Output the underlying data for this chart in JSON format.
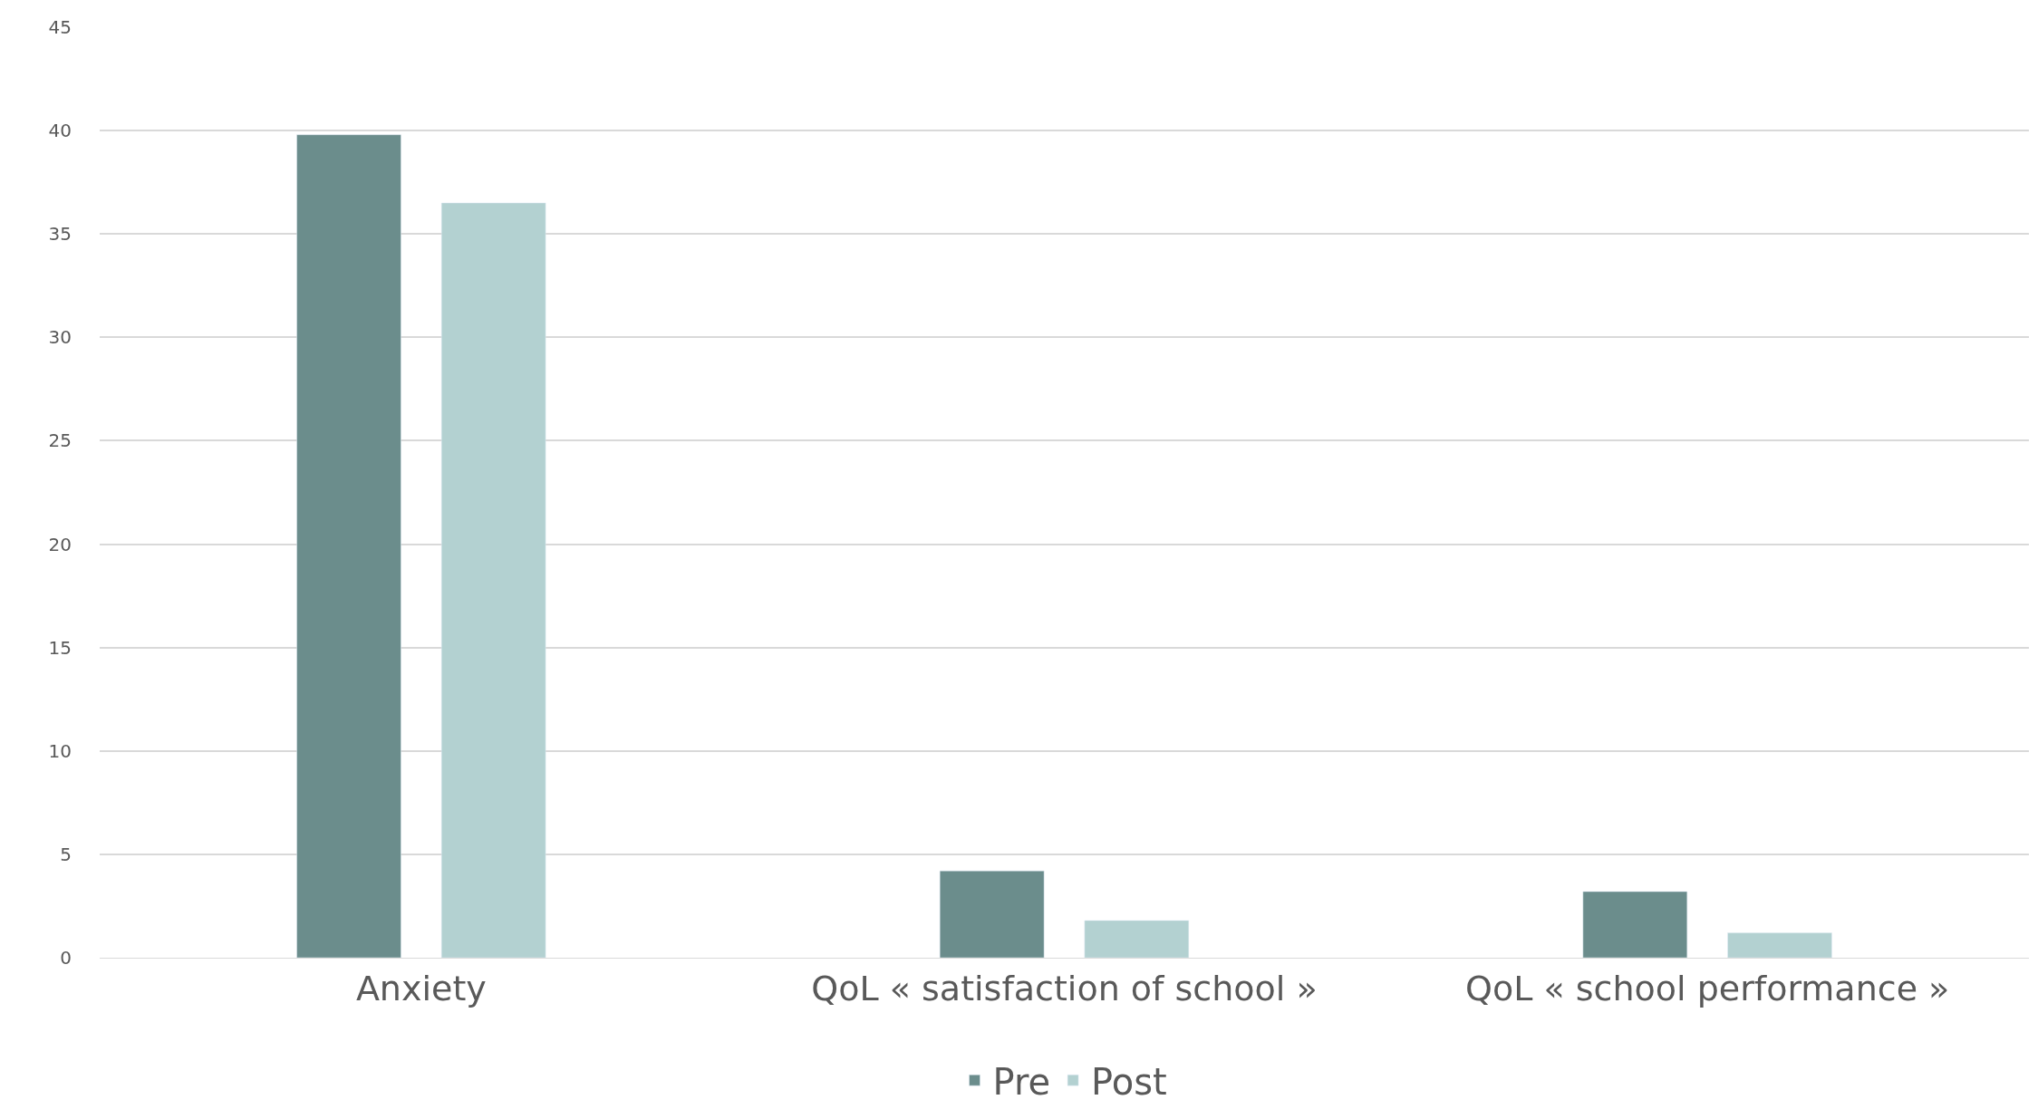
{
  "chart_data": {
    "type": "bar",
    "categories": [
      "Anxiety",
      "QoL « satisfaction of school »",
      "QoL « school performance »"
    ],
    "series": [
      {
        "name": "Pre",
        "color": "#6b8d8c",
        "values": [
          39.8,
          4.2,
          3.2
        ]
      },
      {
        "name": "Post",
        "color": "#b3d1d1",
        "values": [
          36.5,
          1.8,
          1.2
        ]
      }
    ],
    "ylim": [
      0,
      45
    ],
    "yticks": [
      0,
      5,
      10,
      15,
      20,
      25,
      30,
      35,
      40,
      45
    ],
    "grid": "y",
    "legend": "bottom"
  }
}
